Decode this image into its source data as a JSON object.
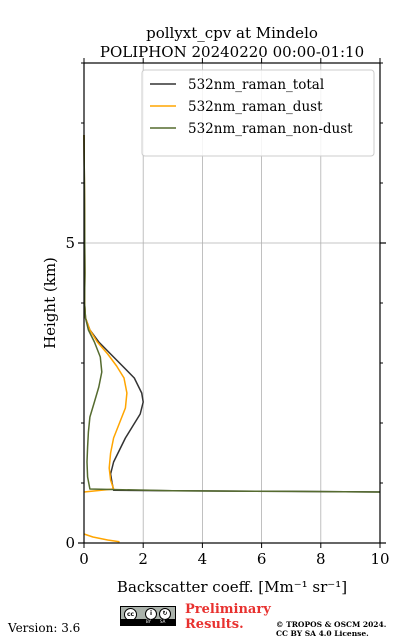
{
  "chart_data": {
    "type": "line",
    "title": "pollyxt_cpv at Mindelo",
    "subtitle": "POLIPHON 20240220 00:00-01:10",
    "xlabel": "Backscatter coeff. [Mm⁻¹ sr⁻¹]",
    "ylabel": "Height (km)",
    "xlim": [
      0,
      10
    ],
    "ylim": [
      0,
      8
    ],
    "xticks": [
      "0",
      "2",
      "4",
      "6",
      "8",
      "10"
    ],
    "yticks": [
      "0",
      "5"
    ],
    "grid": true,
    "legend_position": "top-right",
    "series": [
      {
        "name": "532nm_raman_total",
        "color": "#333333",
        "x": [
          0,
          0.02,
          0.03,
          0.02,
          0.05,
          0.2,
          0.5,
          0.9,
          1.3,
          1.7,
          1.95,
          2.0,
          1.9,
          1.65,
          1.4,
          1.2,
          1.0,
          0.9,
          0.95,
          1.0,
          3.0,
          7.0,
          10.0
        ],
        "y": [
          6.8,
          5.5,
          4.5,
          4.0,
          3.75,
          3.55,
          3.35,
          3.15,
          2.95,
          2.75,
          2.5,
          2.35,
          2.15,
          1.95,
          1.75,
          1.55,
          1.35,
          1.15,
          1.0,
          0.88,
          0.87,
          0.86,
          0.85
        ]
      },
      {
        "name": "532nm_raman_dust",
        "color": "#ffa500",
        "x": [
          0,
          0.02,
          0.03,
          0.02,
          0.05,
          0.2,
          0.45,
          0.8,
          1.1,
          1.35,
          1.45,
          1.4,
          1.2,
          1.0,
          0.9,
          0.85,
          0.9,
          1.0,
          0.0
        ],
        "y": [
          6.8,
          5.5,
          4.5,
          4.0,
          3.75,
          3.55,
          3.35,
          3.15,
          2.95,
          2.75,
          2.5,
          2.25,
          2.0,
          1.75,
          1.5,
          1.25,
          1.05,
          0.9,
          0.85
        ]
      },
      {
        "name": "532nm_raman_non-dust",
        "color": "#556b2f",
        "x": [
          0,
          0.02,
          0.03,
          0.02,
          0.05,
          0.15,
          0.35,
          0.55,
          0.6,
          0.5,
          0.35,
          0.2,
          0.15,
          0.12,
          0.1,
          0.12,
          0.2,
          3.0,
          7.0,
          10.0
        ],
        "y": [
          6.8,
          5.5,
          4.5,
          4.0,
          3.75,
          3.55,
          3.35,
          3.1,
          2.85,
          2.6,
          2.35,
          2.1,
          1.85,
          1.6,
          1.35,
          1.1,
          0.9,
          0.87,
          0.86,
          0.85
        ]
      },
      {
        "name": "",
        "color": "#ffa500",
        "x": [
          0,
          0.3,
          0.8,
          1.2
        ],
        "y": [
          0.15,
          0.1,
          0.05,
          0.02
        ]
      }
    ]
  },
  "footer": {
    "version": "Version: 3.6",
    "preliminary_line1": "Preliminary",
    "preliminary_line2": "Results.",
    "copyright_line1": "© TROPOS & OSCM 2024.",
    "copyright_line2": "CC BY SA 4.0 License.",
    "badge_left": "BY",
    "badge_right": "SA"
  }
}
